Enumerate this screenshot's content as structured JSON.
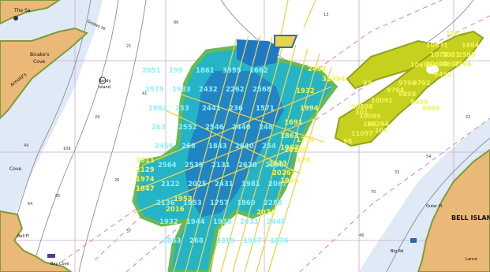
{
  "map": {
    "colors": {
      "water": "#ffffff",
      "shallow": "#dfeaf6",
      "land": "#eab877",
      "land_shore": "#7e9b3b",
      "survey_cool": "#1f78c4",
      "survey_mid": "#25b4c6",
      "survey_warm": "#66ba55",
      "survey_yellow": "#c6d11e",
      "track": "#e9d24d",
      "track_outline": "#2b6cb0",
      "sounding_cyan": "#8ff0ff",
      "sounding_yellow": "#f3f35b",
      "grid": "#c9a8c8",
      "contour": "#8e8e96",
      "dashed_route": "#d68fb0"
    },
    "labels": {
      "place_top_left": "The Sa",
      "place_bicake": "Bicake's",
      "place_cove": "Cove",
      "place_sandy": "Sandy",
      "place_island": "Island",
      "place_arnolds": "Arnold's",
      "place_left_cove": "Cove",
      "place_bell_island": "BELL ISLAN",
      "place_lance": "Lance",
      "place_bell_fl": "Bell Fl",
      "place_outer_pt": "Outer Pt",
      "place_bay_cove": "Bay Cove",
      "place_big_rd": "Big Rd",
      "place_grebes": "Grebes Ht"
    },
    "chart_depths": [
      "49",
      "108",
      "26",
      "37",
      "64",
      "85",
      "29",
      "21",
      "70",
      "46",
      "33",
      "22",
      "13",
      "86",
      "41",
      "54"
    ],
    "sounding_labels_cyan": [
      "2051",
      "199",
      "1861",
      "3355",
      "1662",
      "2575",
      "1983",
      "2432",
      "2262",
      "2568",
      "1862",
      "253",
      "2441",
      "236",
      "1571",
      "263",
      "2552",
      "2546",
      "2440",
      "248",
      "2456",
      "268",
      "1843",
      "2840",
      "254",
      "2564",
      "2539",
      "2131",
      "2620",
      "2090",
      "2122",
      "2025",
      "2431",
      "1981",
      "2067",
      "2136",
      "1953",
      "1757",
      "1860",
      "2283",
      "1932",
      "1944",
      "1936",
      "2431",
      "2440",
      "1853",
      "268",
      "2359",
      "1967",
      "1876"
    ],
    "sounding_labels_yellow": [
      "2402",
      "31394",
      "1932",
      "1994",
      "1691",
      "1863",
      "1963",
      "2433",
      "1758",
      "20149",
      "176",
      "20267",
      "1904",
      "1811",
      "2129",
      "1974",
      "1847",
      "2016",
      "1953",
      "2074"
    ],
    "survey_labels_right": [
      "10631",
      "100",
      "1694",
      "1074",
      "1081",
      "2598",
      "10698",
      "10698",
      "10697",
      "9798",
      "9492",
      "9796",
      "9792",
      "9794",
      "9898",
      "9994",
      "9998",
      "10091",
      "10898",
      "10095",
      "10294",
      "101",
      "106",
      "11097",
      "103",
      "98",
      "99"
    ]
  }
}
